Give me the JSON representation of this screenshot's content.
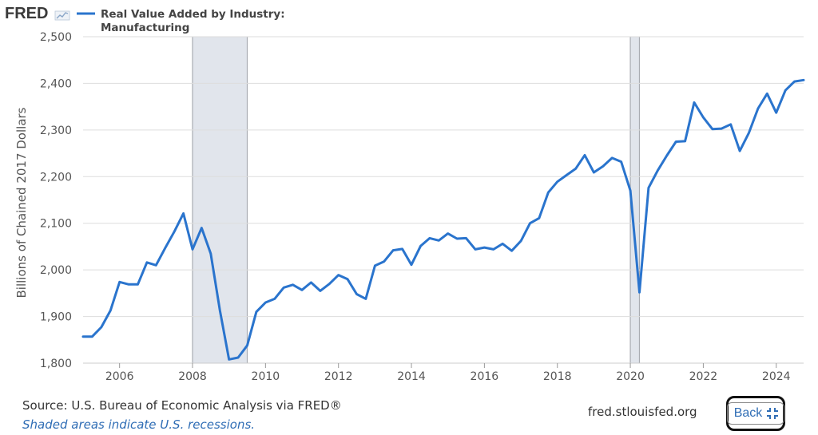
{
  "header": {
    "logo": "FRED",
    "legend_title": "Real Value Added by Industry:",
    "legend_subtitle": "Manufacturing",
    "series_color": "#2a74cd"
  },
  "chart_data": {
    "type": "line",
    "ylabel": "Billions of Chained 2017 Dollars",
    "xlabel": "",
    "ylim": [
      1800,
      2500
    ],
    "xlim": [
      2005.0,
      2024.75
    ],
    "y_ticks": [
      1800,
      1900,
      2000,
      2100,
      2200,
      2300,
      2400,
      2500
    ],
    "y_tick_labels": [
      "1,800",
      "1,900",
      "2,000",
      "2,100",
      "2,200",
      "2,300",
      "2,400",
      "2,500"
    ],
    "x_ticks": [
      2006,
      2008,
      2010,
      2012,
      2014,
      2016,
      2018,
      2020,
      2022,
      2024
    ],
    "x_tick_labels": [
      "2006",
      "2008",
      "2010",
      "2012",
      "2014",
      "2016",
      "2018",
      "2020",
      "2022",
      "2024"
    ],
    "grid": true,
    "recessions": [
      {
        "start": 2008.0,
        "end": 2009.5
      },
      {
        "start": 2020.0,
        "end": 2020.25
      }
    ],
    "series": [
      {
        "name": "Real Value Added by Industry: Manufacturing",
        "x": [
          2005.0,
          2005.25,
          2005.5,
          2005.75,
          2006.0,
          2006.25,
          2006.5,
          2006.75,
          2007.0,
          2007.25,
          2007.5,
          2007.75,
          2008.0,
          2008.25,
          2008.5,
          2008.75,
          2009.0,
          2009.25,
          2009.5,
          2009.75,
          2010.0,
          2010.25,
          2010.5,
          2010.75,
          2011.0,
          2011.25,
          2011.5,
          2011.75,
          2012.0,
          2012.25,
          2012.5,
          2012.75,
          2013.0,
          2013.25,
          2013.5,
          2013.75,
          2014.0,
          2014.25,
          2014.5,
          2014.75,
          2015.0,
          2015.25,
          2015.5,
          2015.75,
          2016.0,
          2016.25,
          2016.5,
          2016.75,
          2017.0,
          2017.25,
          2017.5,
          2017.75,
          2018.0,
          2018.25,
          2018.5,
          2018.75,
          2019.0,
          2019.25,
          2019.5,
          2019.75,
          2020.0,
          2020.25,
          2020.5,
          2020.75,
          2021.0,
          2021.25,
          2021.5,
          2021.75,
          2022.0,
          2022.25,
          2022.5,
          2022.75,
          2023.0,
          2023.25,
          2023.5,
          2023.75,
          2024.0,
          2024.25,
          2024.5,
          2024.75
        ],
        "values": [
          1857,
          1857,
          1877,
          1913,
          1974,
          1969,
          1969,
          2016,
          2010,
          2047,
          2082,
          2121,
          2044,
          2090,
          2035,
          1913,
          1808,
          1812,
          1838,
          1910,
          1930,
          1938,
          1962,
          1968,
          1957,
          1973,
          1955,
          1970,
          1989,
          1980,
          1948,
          1938,
          2009,
          2018,
          2042,
          2045,
          2011,
          2051,
          2068,
          2063,
          2078,
          2067,
          2068,
          2044,
          2048,
          2044,
          2056,
          2041,
          2062,
          2100,
          2111,
          2166,
          2189,
          2203,
          2217,
          2246,
          2209,
          2222,
          2240,
          2232,
          2170,
          1952,
          2176,
          2213,
          2245,
          2275,
          2276,
          2359,
          2327,
          2302,
          2303,
          2312,
          2255,
          2294,
          2346,
          2378,
          2337,
          2385,
          2404,
          2407
        ]
      }
    ]
  },
  "footer": {
    "source": "Source: U.S. Bureau of Economic Analysis via FRED®",
    "note": "Shaded areas indicate U.S. recessions.",
    "site": "fred.stlouisfed.org",
    "back_label": "Back",
    "back_icon": "collapse-icon"
  }
}
